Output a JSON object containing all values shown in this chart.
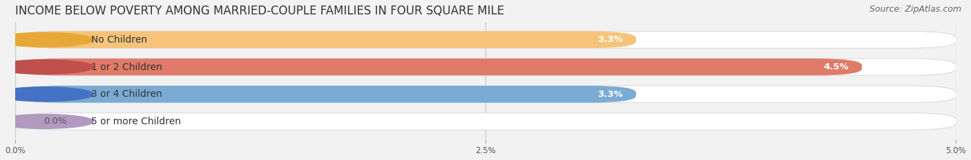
{
  "title": "INCOME BELOW POVERTY AMONG MARRIED-COUPLE FAMILIES IN FOUR SQUARE MILE",
  "source": "Source: ZipAtlas.com",
  "categories": [
    "No Children",
    "1 or 2 Children",
    "3 or 4 Children",
    "5 or more Children"
  ],
  "values": [
    3.3,
    4.5,
    3.3,
    0.0
  ],
  "bar_colors": [
    "#f5c47a",
    "#e07b6a",
    "#7aabd4",
    "#c9a8d4"
  ],
  "tab_colors": [
    "#e8a838",
    "#c0504d",
    "#4472c4",
    "#b09ac0"
  ],
  "xlim": [
    0,
    5.0
  ],
  "xticks": [
    0.0,
    2.5,
    5.0
  ],
  "xticklabels": [
    "0.0%",
    "2.5%",
    "5.0%"
  ],
  "bg_color": "#f2f2f2",
  "bar_bg_color": "#e8e8e8",
  "title_fontsize": 12,
  "source_fontsize": 9,
  "label_fontsize": 10,
  "value_fontsize": 9.5
}
